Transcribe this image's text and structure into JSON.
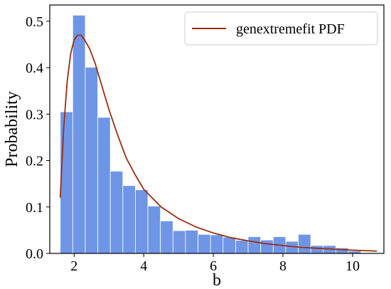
{
  "chart_data": {
    "type": "bar",
    "xlabel": "b",
    "ylabel": "Probability",
    "xlim": [
      1.3,
      10.9
    ],
    "ylim": [
      0,
      0.535
    ],
    "x_ticks": [
      2,
      4,
      6,
      8,
      10
    ],
    "y_ticks": [
      0.0,
      0.1,
      0.2,
      0.3,
      0.4,
      0.5
    ],
    "x_tick_labels": [
      "2",
      "4",
      "6",
      "8",
      "10"
    ],
    "y_tick_labels": [
      "0.0",
      "0.1",
      "0.2",
      "0.3",
      "0.4",
      "0.5"
    ],
    "grid": false,
    "legend": {
      "position": "top-right",
      "entries": [
        "genextremefit PDF"
      ]
    },
    "histogram": {
      "bin_width": 0.36,
      "bin_left_edges": [
        1.6,
        1.96,
        2.32,
        2.68,
        3.04,
        3.4,
        3.76,
        4.12,
        4.48,
        4.84,
        5.2,
        5.56,
        5.92,
        6.28,
        6.64,
        7.0,
        7.36,
        7.72,
        8.08,
        8.44,
        8.8,
        9.16,
        9.52,
        9.88
      ],
      "values": [
        0.305,
        0.513,
        0.401,
        0.293,
        0.177,
        0.146,
        0.137,
        0.102,
        0.07,
        0.049,
        0.05,
        0.041,
        0.04,
        0.035,
        0.028,
        0.036,
        0.029,
        0.036,
        0.026,
        0.041,
        0.017,
        0.017,
        0.012,
        0.005
      ],
      "color": "#6f96e6"
    },
    "series": [
      {
        "name": "genextremefit PDF",
        "type": "line",
        "color": "#9b2d12",
        "x": [
          1.6,
          1.7,
          1.8,
          1.9,
          2.0,
          2.1,
          2.2,
          2.3,
          2.45,
          2.6,
          2.8,
          3.0,
          3.25,
          3.5,
          3.75,
          4.0,
          4.5,
          5.0,
          5.5,
          6.0,
          6.5,
          7.0,
          7.5,
          8.0,
          8.5,
          9.0,
          9.5,
          10.0,
          10.7
        ],
        "y": [
          0.12,
          0.27,
          0.37,
          0.43,
          0.46,
          0.47,
          0.47,
          0.46,
          0.44,
          0.41,
          0.36,
          0.31,
          0.255,
          0.205,
          0.17,
          0.138,
          0.1,
          0.075,
          0.057,
          0.044,
          0.034,
          0.027,
          0.021,
          0.017,
          0.013,
          0.011,
          0.009,
          0.007,
          0.005
        ]
      }
    ]
  }
}
